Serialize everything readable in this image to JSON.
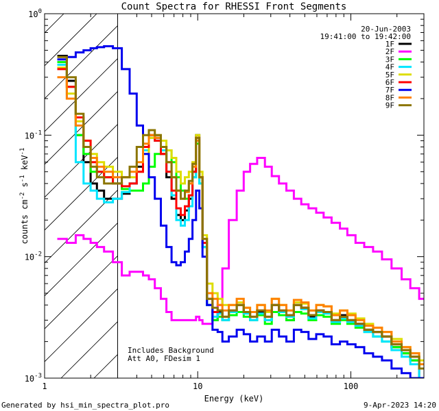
{
  "chart_data": {
    "type": "line",
    "title": "Count Spectra for RHESSI Front Segments",
    "xlabel": "Energy (keV)",
    "ylabel_parts": [
      "counts cm",
      "-2",
      " s",
      "-1",
      " keV",
      "-1"
    ],
    "xscale": "log",
    "yscale": "log",
    "xlim": [
      1,
      300
    ],
    "ylim": [
      0.001,
      1
    ],
    "x_ticks": [
      {
        "v": 1,
        "label": "1"
      },
      {
        "v": 10,
        "label": "10"
      },
      {
        "v": 100,
        "label": "100"
      }
    ],
    "y_ticks": [
      {
        "v": 1,
        "base": "10",
        "exp": "0"
      },
      {
        "v": 0.1,
        "base": "10",
        "exp": "-1"
      },
      {
        "v": 0.01,
        "base": "10",
        "exp": "-2"
      },
      {
        "v": 0.001,
        "base": "10",
        "exp": "-3"
      }
    ],
    "attenuator_cutoff_kev": 3,
    "legend_position": "top-right",
    "info_date": "20-Jun-2003",
    "info_time": "19:41:00 to 19:42:00",
    "note1": "Includes Background",
    "note2": "Att A0, FDesim 1",
    "footer_left": "Generated by hsi_min_spectra_plot.pro",
    "footer_right": "9-Apr-2023 14:20",
    "energies": [
      1.3,
      1.5,
      1.7,
      1.9,
      2.1,
      2.3,
      2.6,
      3.0,
      3.4,
      3.8,
      4.2,
      4.6,
      5.0,
      5.5,
      6.0,
      6.5,
      7.0,
      7.5,
      8.0,
      8.5,
      9.0,
      9.5,
      10.0,
      10.5,
      11.0,
      12.0,
      13.0,
      14.0,
      15.0,
      17.0,
      19.0,
      21.0,
      23.0,
      26.0,
      29.0,
      32.0,
      36.0,
      40.0,
      45.0,
      50.0,
      56.0,
      63.0,
      70.0,
      80.0,
      90.0,
      100.0,
      115.0,
      130.0,
      150.0,
      170.0,
      200.0,
      230.0,
      260.0,
      300.0
    ],
    "series": [
      {
        "name": "1F",
        "color": "#000000",
        "values": [
          0.45,
          0.28,
          0.1,
          0.06,
          0.04,
          0.035,
          0.03,
          0.03,
          0.033,
          0.04,
          0.055,
          0.08,
          0.1,
          0.095,
          0.07,
          0.045,
          0.03,
          0.022,
          0.02,
          0.024,
          0.03,
          0.05,
          0.1,
          0.045,
          0.012,
          0.004,
          0.003,
          0.0035,
          0.003,
          0.0035,
          0.004,
          0.0035,
          0.003,
          0.0035,
          0.003,
          0.004,
          0.0035,
          0.003,
          0.004,
          0.0038,
          0.0032,
          0.0036,
          0.0035,
          0.003,
          0.0033,
          0.003,
          0.0028,
          0.0025,
          0.0024,
          0.0022,
          0.0018,
          0.0016,
          0.0014,
          0.001
        ]
      },
      {
        "name": "2F",
        "color": "#ff00ff",
        "values": [
          0.014,
          0.013,
          0.015,
          0.014,
          0.013,
          0.012,
          0.011,
          0.009,
          0.007,
          0.0075,
          0.0075,
          0.007,
          0.0065,
          0.0055,
          0.0045,
          0.0035,
          0.003,
          0.003,
          0.003,
          0.003,
          0.003,
          0.003,
          0.0032,
          0.003,
          0.0028,
          0.0028,
          0.003,
          0.004,
          0.008,
          0.02,
          0.035,
          0.05,
          0.058,
          0.065,
          0.055,
          0.046,
          0.04,
          0.035,
          0.03,
          0.027,
          0.025,
          0.023,
          0.021,
          0.019,
          0.017,
          0.015,
          0.013,
          0.012,
          0.011,
          0.0095,
          0.008,
          0.0065,
          0.0055,
          0.0045
        ]
      },
      {
        "name": "3F",
        "color": "#00ff00",
        "values": [
          0.4,
          0.25,
          0.1,
          0.07,
          0.05,
          0.05,
          0.045,
          0.04,
          0.036,
          0.035,
          0.035,
          0.04,
          0.055,
          0.07,
          0.08,
          0.075,
          0.06,
          0.045,
          0.035,
          0.03,
          0.032,
          0.045,
          0.085,
          0.04,
          0.012,
          0.004,
          0.003,
          0.0032,
          0.003,
          0.0033,
          0.0035,
          0.0032,
          0.003,
          0.0033,
          0.0028,
          0.0035,
          0.0033,
          0.003,
          0.0035,
          0.0034,
          0.003,
          0.0033,
          0.0032,
          0.0028,
          0.003,
          0.0028,
          0.0026,
          0.0024,
          0.0022,
          0.002,
          0.0018,
          0.0016,
          0.0014,
          0.0012
        ]
      },
      {
        "name": "4F",
        "color": "#00e5ff",
        "values": [
          0.38,
          0.2,
          0.06,
          0.04,
          0.035,
          0.03,
          0.028,
          0.03,
          0.034,
          0.04,
          0.05,
          0.075,
          0.095,
          0.09,
          0.075,
          0.05,
          0.032,
          0.02,
          0.018,
          0.02,
          0.026,
          0.045,
          0.09,
          0.04,
          0.012,
          0.004,
          0.0032,
          0.0034,
          0.003,
          0.0035,
          0.004,
          0.0034,
          0.003,
          0.0034,
          0.003,
          0.004,
          0.0035,
          0.0032,
          0.004,
          0.0037,
          0.0031,
          0.0035,
          0.0034,
          0.0029,
          0.0031,
          0.0029,
          0.0027,
          0.0024,
          0.0022,
          0.002,
          0.0017,
          0.0015,
          0.0013,
          0.001
        ]
      },
      {
        "name": "5F",
        "color": "#dddd00",
        "values": [
          0.36,
          0.22,
          0.13,
          0.09,
          0.07,
          0.06,
          0.055,
          0.05,
          0.045,
          0.045,
          0.05,
          0.07,
          0.095,
          0.1,
          0.09,
          0.075,
          0.065,
          0.05,
          0.04,
          0.045,
          0.05,
          0.06,
          0.1,
          0.05,
          0.015,
          0.006,
          0.005,
          0.0045,
          0.004,
          0.004,
          0.0042,
          0.0038,
          0.0035,
          0.004,
          0.0035,
          0.0045,
          0.004,
          0.0036,
          0.0042,
          0.0041,
          0.0036,
          0.004,
          0.0039,
          0.0034,
          0.0036,
          0.0034,
          0.0031,
          0.0028,
          0.0026,
          0.0024,
          0.0021,
          0.0018,
          0.0016,
          0.0014
        ]
      },
      {
        "name": "6F",
        "color": "#ff0000",
        "values": [
          0.35,
          0.25,
          0.14,
          0.09,
          0.06,
          0.05,
          0.045,
          0.04,
          0.038,
          0.04,
          0.05,
          0.08,
          0.1,
          0.09,
          0.07,
          0.05,
          0.035,
          0.025,
          0.022,
          0.026,
          0.032,
          0.05,
          0.095,
          0.045,
          0.013,
          0.0045,
          0.0035,
          0.0036,
          0.0032,
          0.0036,
          0.004,
          0.0035,
          0.0032,
          0.0036,
          0.0032,
          0.004,
          0.0036,
          0.0033,
          0.004,
          0.0038,
          0.0033,
          0.0036,
          0.0035,
          0.003,
          0.0032,
          0.003,
          0.0028,
          0.0025,
          0.0024,
          0.0022,
          0.0019,
          0.0017,
          0.0015,
          0.0012
        ]
      },
      {
        "name": "7F",
        "color": "#0000ee",
        "values": [
          0.42,
          0.44,
          0.48,
          0.5,
          0.52,
          0.53,
          0.54,
          0.52,
          0.35,
          0.22,
          0.12,
          0.07,
          0.045,
          0.03,
          0.018,
          0.012,
          0.009,
          0.0085,
          0.009,
          0.011,
          0.014,
          0.02,
          0.035,
          0.025,
          0.01,
          0.004,
          0.0025,
          0.0024,
          0.002,
          0.0022,
          0.0025,
          0.0023,
          0.002,
          0.0022,
          0.002,
          0.0025,
          0.0022,
          0.002,
          0.0025,
          0.0024,
          0.0021,
          0.0023,
          0.0022,
          0.0019,
          0.002,
          0.0019,
          0.0018,
          0.0016,
          0.0015,
          0.0014,
          0.0012,
          0.0011,
          0.001,
          0.001
        ]
      },
      {
        "name": "8F",
        "color": "#ff8000",
        "values": [
          0.3,
          0.2,
          0.12,
          0.08,
          0.065,
          0.055,
          0.05,
          0.045,
          0.045,
          0.05,
          0.06,
          0.085,
          0.1,
          0.095,
          0.08,
          0.06,
          0.045,
          0.035,
          0.03,
          0.034,
          0.04,
          0.055,
          0.09,
          0.045,
          0.014,
          0.005,
          0.0045,
          0.004,
          0.0036,
          0.004,
          0.0045,
          0.0038,
          0.0035,
          0.004,
          0.0036,
          0.0045,
          0.004,
          0.0036,
          0.0044,
          0.0042,
          0.0036,
          0.004,
          0.0039,
          0.0033,
          0.0036,
          0.0033,
          0.003,
          0.0027,
          0.0026,
          0.0024,
          0.002,
          0.0018,
          0.0016,
          0.0013
        ]
      },
      {
        "name": "9F",
        "color": "#8b7500",
        "values": [
          0.44,
          0.3,
          0.15,
          0.08,
          0.055,
          0.045,
          0.04,
          0.04,
          0.045,
          0.055,
          0.08,
          0.1,
          0.11,
          0.1,
          0.08,
          0.06,
          0.045,
          0.035,
          0.03,
          0.035,
          0.042,
          0.058,
          0.095,
          0.045,
          0.014,
          0.0045,
          0.0038,
          0.0036,
          0.0032,
          0.0036,
          0.004,
          0.0035,
          0.0032,
          0.0036,
          0.0032,
          0.004,
          0.0036,
          0.0033,
          0.004,
          0.0038,
          0.0033,
          0.0036,
          0.0035,
          0.003,
          0.0032,
          0.003,
          0.0028,
          0.0025,
          0.0024,
          0.0022,
          0.0019,
          0.0017,
          0.0015,
          0.0012
        ]
      }
    ]
  }
}
